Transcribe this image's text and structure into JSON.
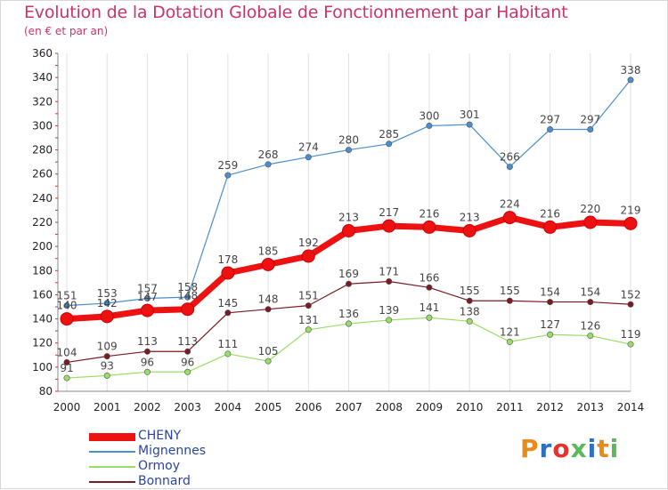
{
  "title": "Evolution de la Dotation Globale de Fonctionnement par Habitant",
  "subtitle": "(en € et par an)",
  "logo": {
    "text": "Proxiti",
    "colors": [
      "#e98a1c",
      "#2d6fc4",
      "#e5322d",
      "#5cb85c",
      "#2d6fc4",
      "#e98a1c",
      "#5cb85c"
    ]
  },
  "chart_data": {
    "type": "line",
    "x": [
      "2000",
      "2001",
      "2002",
      "2003",
      "2004",
      "2005",
      "2006",
      "2007",
      "2008",
      "2009",
      "2010",
      "2011",
      "2012",
      "2013",
      "2014"
    ],
    "ylim": [
      80,
      360
    ],
    "yticks": [
      80,
      100,
      120,
      140,
      160,
      180,
      200,
      220,
      240,
      260,
      280,
      300,
      320,
      340,
      360
    ],
    "grid": "vertical",
    "legend": "bottom-left",
    "series": [
      {
        "name": "Mignennes",
        "color": "#4a8fcc",
        "width": 1.2,
        "values": [
          151,
          153,
          157,
          158,
          259,
          268,
          274,
          280,
          285,
          300,
          301,
          266,
          297,
          297,
          338
        ]
      },
      {
        "name": "Ormoy",
        "color": "#99dd66",
        "width": 1.2,
        "values": [
          91,
          93,
          96,
          96,
          111,
          105,
          131,
          136,
          139,
          141,
          138,
          121,
          127,
          126,
          119
        ]
      },
      {
        "name": "Bonnard",
        "color": "#7a1a22",
        "width": 1.2,
        "values": [
          104,
          109,
          113,
          113,
          145,
          148,
          151,
          169,
          171,
          166,
          155,
          155,
          154,
          154,
          152
        ]
      },
      {
        "name": "CHENY",
        "color": "#ee1111",
        "width": 7,
        "values": [
          140,
          142,
          147,
          148,
          178,
          185,
          192,
          213,
          217,
          216,
          213,
          224,
          216,
          220,
          219
        ]
      }
    ],
    "legend_order": [
      "CHENY",
      "Mignennes",
      "Ormoy",
      "Bonnard"
    ]
  }
}
